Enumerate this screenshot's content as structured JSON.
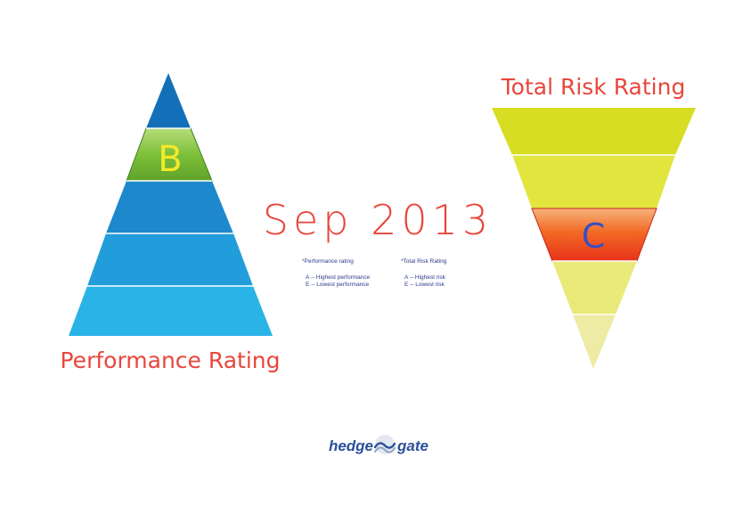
{
  "date_label": "Sep 2013",
  "performance": {
    "title": "Performance Rating",
    "selected_rating": "B",
    "tier_colors": [
      "#1370B8",
      "#7BBF3A",
      "#1E88CC",
      "#229DDB",
      "#2AB3E6"
    ]
  },
  "risk": {
    "title": "Total Risk Rating",
    "selected_rating": "C",
    "tier_colors": [
      "#D6DD22",
      "#E1E53E",
      "#F05A1E",
      "#E9EA7A",
      "#EDEBA4"
    ]
  },
  "legend": {
    "performance": {
      "heading": "*Performance rating",
      "line1": "A -- Highest performance",
      "line2": "E -- Lowest performance"
    },
    "risk": {
      "heading": "*Total Risk Rating",
      "line1": "A -- Highest risk",
      "line2": "E -- Lowest risk"
    }
  },
  "logo": {
    "left": "hedge",
    "right": "gate",
    "color": "#2A4F9A"
  },
  "accent_color": "#E8463C",
  "legend_color": "#2B3A8A"
}
